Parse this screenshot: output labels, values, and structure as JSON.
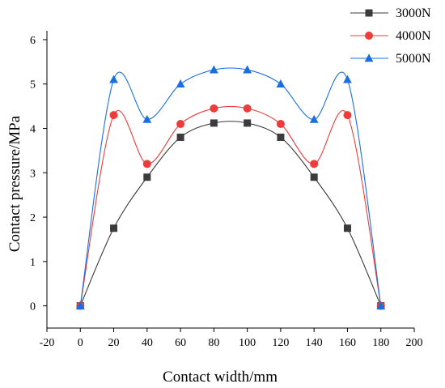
{
  "chart_data": {
    "type": "line",
    "xlabel": "Contact width/mm",
    "ylabel": "Contact pressure/MPa",
    "xlim": [
      -20,
      200
    ],
    "ylim": [
      -0.5,
      6.2
    ],
    "xticks": [
      -20,
      0,
      20,
      40,
      60,
      80,
      100,
      120,
      140,
      160,
      180,
      200
    ],
    "yticks": [
      0,
      1,
      2,
      3,
      4,
      5,
      6
    ],
    "grid": false,
    "legend_position": "top-right",
    "x": [
      0,
      20,
      40,
      60,
      80,
      100,
      120,
      140,
      160,
      180
    ],
    "series": [
      {
        "name": "3000N",
        "color": "#3b3b3b",
        "marker": "square",
        "values": [
          0,
          1.75,
          2.9,
          3.8,
          4.12,
          4.12,
          3.8,
          2.9,
          1.75,
          0
        ]
      },
      {
        "name": "4000N",
        "color": "#ee3b3b",
        "marker": "circle",
        "values": [
          0,
          4.3,
          3.2,
          4.1,
          4.45,
          4.45,
          4.1,
          3.2,
          4.3,
          0
        ]
      },
      {
        "name": "5000N",
        "color": "#1a6fdf",
        "marker": "triangle",
        "values": [
          0,
          5.1,
          4.2,
          5.0,
          5.32,
          5.32,
          5.0,
          4.2,
          5.1,
          0
        ]
      }
    ]
  }
}
